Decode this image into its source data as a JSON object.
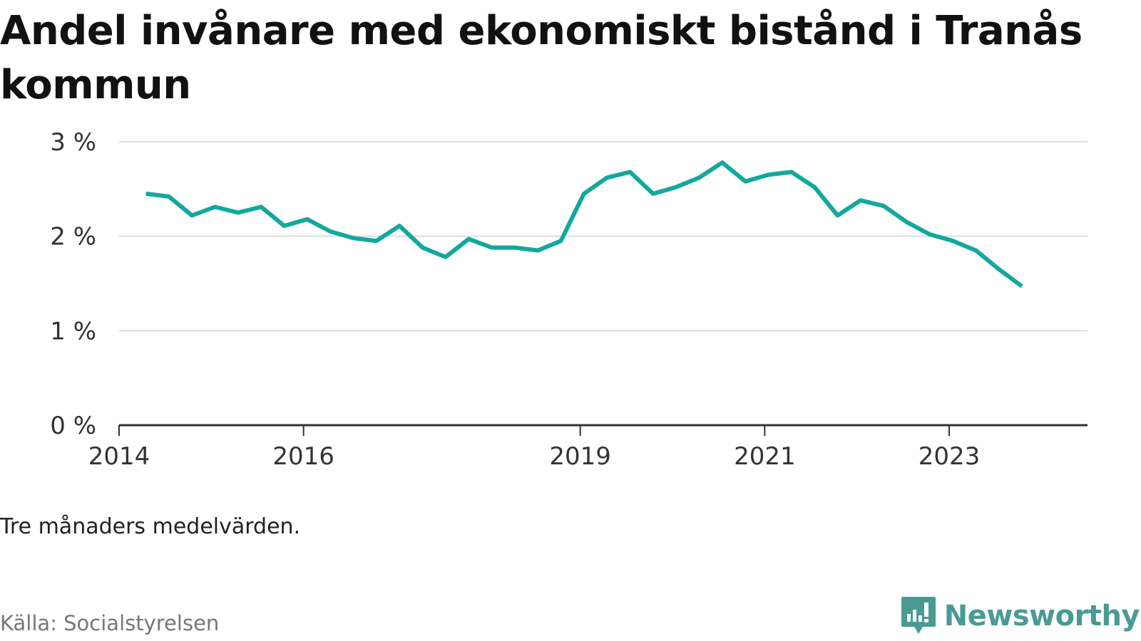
{
  "title": "Andel invånare med ekonomiskt bistånd i Tranås kommun",
  "note": "Tre månaders medelvärden.",
  "source": "Källa: Socialstyrelsen",
  "brand": {
    "name": "Newsworthy",
    "logo_icon": "newsworthy-chart-icon",
    "color": "#4a9a94"
  },
  "colors": {
    "line": "#13a89e",
    "grid": "#dddddd",
    "axis": "#333333"
  },
  "chart_data": {
    "type": "line",
    "title": "Andel invånare med ekonomiskt bistånd i Tranås kommun",
    "xlabel": "",
    "ylabel": "",
    "ylim": [
      0,
      3
    ],
    "xlim": [
      2014.0,
      2024.5
    ],
    "grid": true,
    "yticks": [
      {
        "value": 0,
        "label": "0 %"
      },
      {
        "value": 1,
        "label": "1 %"
      },
      {
        "value": 2,
        "label": "2 %"
      },
      {
        "value": 3,
        "label": "3 %"
      }
    ],
    "xticks": [
      {
        "value": 2014,
        "label": "2014"
      },
      {
        "value": 2016,
        "label": "2016"
      },
      {
        "value": 2019,
        "label": "2019"
      },
      {
        "value": 2021,
        "label": "2021"
      },
      {
        "value": 2023,
        "label": "2023"
      }
    ],
    "series": [
      {
        "name": "Andel invånare med ekonomiskt bistånd",
        "x": [
          2014.29,
          2014.54,
          2014.79,
          2015.04,
          2015.29,
          2015.54,
          2015.79,
          2016.04,
          2016.29,
          2016.54,
          2016.79,
          2017.04,
          2017.29,
          2017.54,
          2017.79,
          2018.04,
          2018.29,
          2018.54,
          2018.79,
          2019.04,
          2019.29,
          2019.54,
          2019.79,
          2020.04,
          2020.29,
          2020.54,
          2020.79,
          2021.04,
          2021.29,
          2021.54,
          2021.79,
          2022.04,
          2022.29,
          2022.54,
          2022.79,
          2023.04,
          2023.29,
          2023.54,
          2023.79
        ],
        "values": [
          2.45,
          2.42,
          2.22,
          2.31,
          2.25,
          2.31,
          2.11,
          2.18,
          2.05,
          1.98,
          1.95,
          2.11,
          1.88,
          1.78,
          1.97,
          1.88,
          1.88,
          1.85,
          1.95,
          2.45,
          2.62,
          2.68,
          2.45,
          2.52,
          2.62,
          2.78,
          2.58,
          2.65,
          2.68,
          2.52,
          2.22,
          2.38,
          2.32,
          2.15,
          2.02,
          1.95,
          1.85,
          1.65,
          1.47
        ]
      }
    ]
  }
}
